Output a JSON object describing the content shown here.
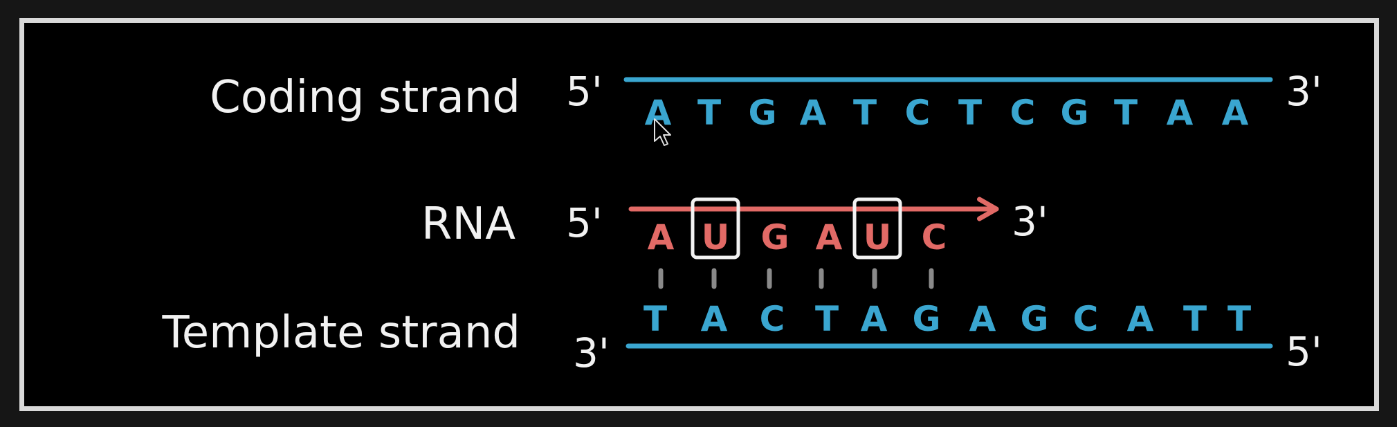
{
  "colors": {
    "background": "#000000",
    "frame": "#d9d9d9",
    "label": "#f2f2f2",
    "dna": "#3aa6d0",
    "rna": "#e26a66",
    "pairing": "#8a8a8a"
  },
  "coding_strand": {
    "label": "Coding strand",
    "left_end": "5'",
    "right_end": "3'",
    "bases": [
      "A",
      "T",
      "G",
      "A",
      "T",
      "C",
      "T",
      "C",
      "G",
      "T",
      "A",
      "A"
    ]
  },
  "rna": {
    "label": "RNA",
    "left_end": "5'",
    "right_end": "3'",
    "bases": [
      "A",
      "U",
      "G",
      "A",
      "U",
      "C"
    ],
    "boxed": [
      1,
      4
    ]
  },
  "template_strand": {
    "label": "Template strand",
    "left_end": "3'",
    "right_end": "5'",
    "bases": [
      "T",
      "A",
      "C",
      "T",
      "A",
      "G",
      "A",
      "G",
      "C",
      "A",
      "T",
      "T"
    ]
  },
  "icons": {
    "cursor": "mouse-pointer-icon"
  }
}
